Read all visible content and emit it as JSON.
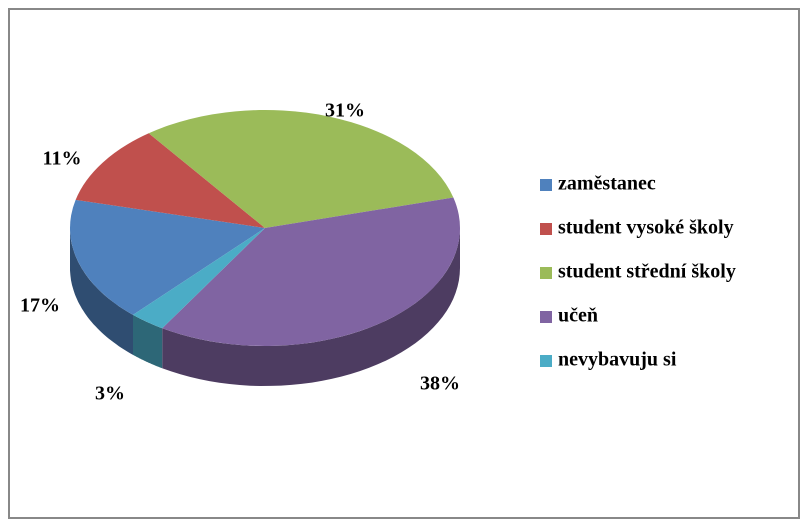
{
  "chart_data": {
    "type": "pie",
    "categories": [
      "zaměstanec",
      "student vysoké školy",
      "student střední školy",
      "učeň",
      "nevybavuju si"
    ],
    "values": [
      17,
      11,
      31,
      38,
      3
    ],
    "value_labels": [
      "17%",
      "11%",
      "31%",
      "38%",
      "3%"
    ],
    "colors": [
      "#4f81bd",
      "#c0504d",
      "#9bbb59",
      "#8064a2",
      "#4bacc6"
    ],
    "legend": "right"
  }
}
